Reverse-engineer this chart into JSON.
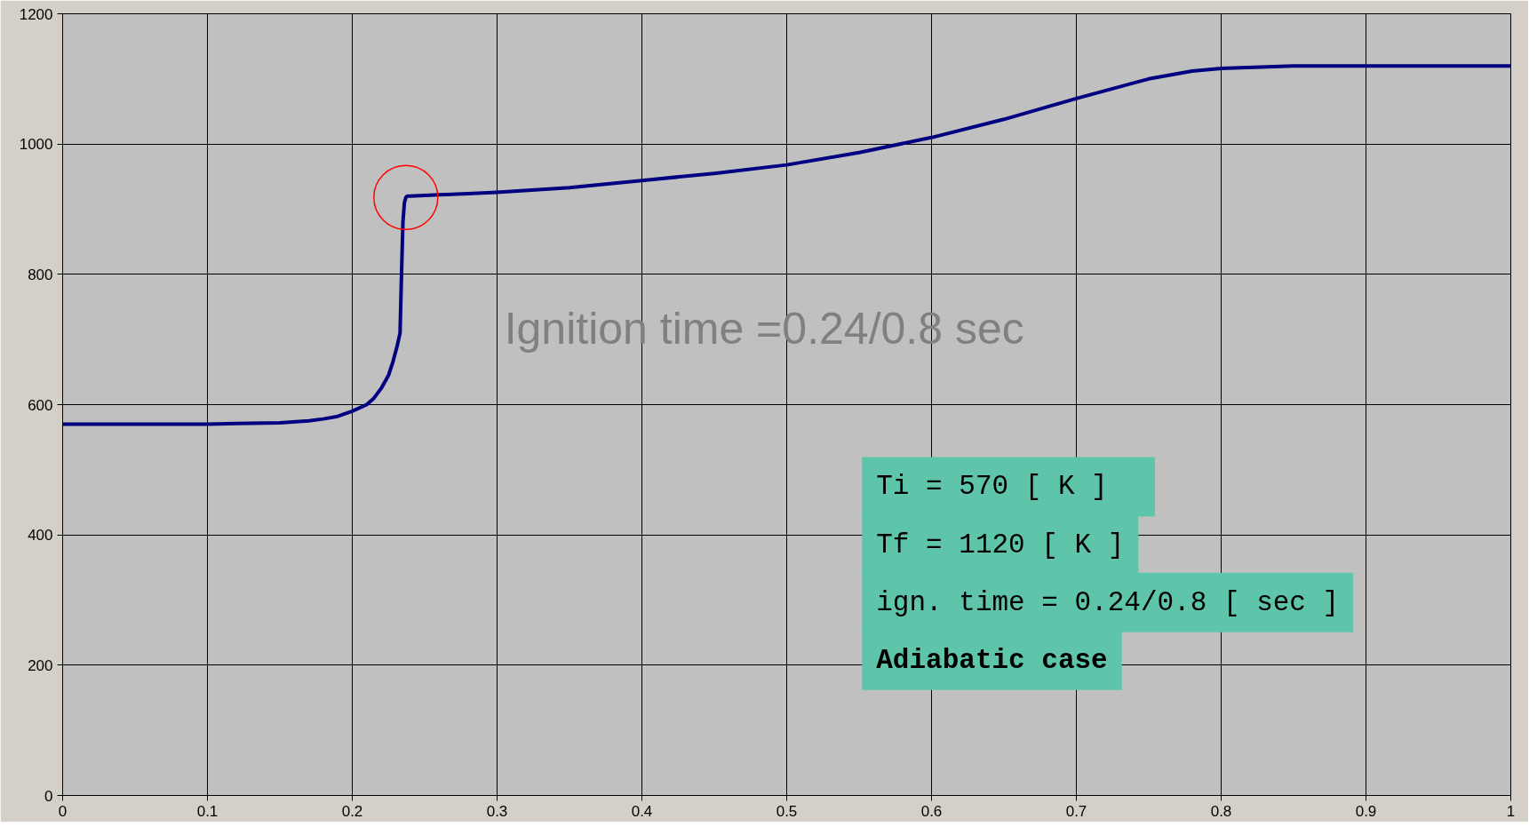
{
  "chart_data": {
    "type": "line",
    "x": [
      0,
      0.05,
      0.1,
      0.12,
      0.15,
      0.17,
      0.18,
      0.19,
      0.2,
      0.21,
      0.215,
      0.22,
      0.225,
      0.228,
      0.231,
      0.233,
      0.234,
      0.235,
      0.236,
      0.237,
      0.238,
      0.24,
      0.25,
      0.26,
      0.28,
      0.3,
      0.35,
      0.4,
      0.45,
      0.5,
      0.55,
      0.6,
      0.65,
      0.7,
      0.75,
      0.78,
      0.8,
      0.85,
      0.9,
      1.0
    ],
    "series": [
      {
        "color": "#000080",
        "values": [
          570,
          570,
          570,
          571,
          572,
          575,
          578,
          582,
          590,
          600,
          610,
          625,
          645,
          665,
          690,
          710,
          800,
          880,
          910,
          918,
          920,
          920,
          921,
          922,
          924,
          926,
          933,
          944,
          955,
          968,
          987,
          1010,
          1038,
          1070,
          1100,
          1112,
          1116,
          1120,
          1120,
          1120
        ]
      }
    ],
    "xlim": [
      0,
      1
    ],
    "ylim": [
      0,
      1200
    ],
    "xticks": [
      0,
      0.1,
      0.2,
      0.3,
      0.4,
      0.5,
      0.6,
      0.7,
      0.8,
      0.9,
      1
    ],
    "yticks": [
      0,
      200,
      400,
      600,
      800,
      1000,
      1200
    ],
    "grid": true,
    "line_style": "solid",
    "marker": "none",
    "annotations": [
      "Ignition time =0.24/0.8 sec",
      "Ti =   570 [ K ]",
      "Tf = 1120 [ K ]",
      "ign. time = 0.24/0.8 [ sec ]",
      "Adiabatic case"
    ]
  }
}
